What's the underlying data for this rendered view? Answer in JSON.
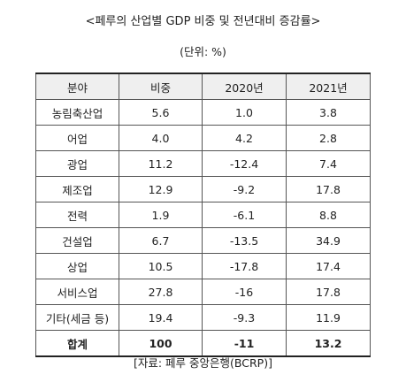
{
  "title": "<페루의 산업별 GDP 비중 및 전년대비 증감률>",
  "unit": "(단위: %)",
  "table": {
    "headers": [
      "분야",
      "비중",
      "2020년",
      "2021년"
    ],
    "rows": [
      [
        "농림축산업",
        "5.6",
        "1.0",
        "3.8"
      ],
      [
        "어업",
        "4.0",
        "4.2",
        "2.8"
      ],
      [
        "광업",
        "11.2",
        "-12.4",
        "7.4"
      ],
      [
        "제조업",
        "12.9",
        "-9.2",
        "17.8"
      ],
      [
        "전력",
        "1.9",
        "-6.1",
        "8.8"
      ],
      [
        "건설업",
        "6.7",
        "-13.5",
        "34.9"
      ],
      [
        "상업",
        "10.5",
        "-17.8",
        "17.4"
      ],
      [
        "서비스업",
        "27.8",
        "-16",
        "17.8"
      ],
      [
        "기타(세금 등)",
        "19.4",
        "-9.3",
        "11.9"
      ]
    ],
    "total": [
      "합계",
      "100",
      "-11",
      "13.2"
    ]
  },
  "source": "[자료: 페루 중앙은행(BCRP)]"
}
